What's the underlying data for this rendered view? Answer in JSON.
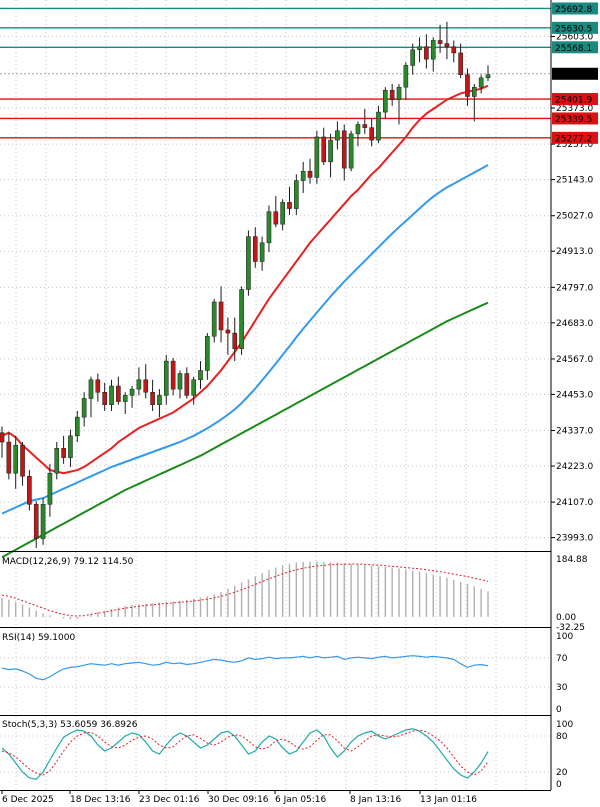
{
  "chart_data": {
    "type": "candlestick",
    "main": {
      "price_ticks": [
        "25603.0",
        "25373.0",
        "25257.0",
        "25143.0",
        "25027.0",
        "24913.0",
        "24797.0",
        "24683.0",
        "24567.0",
        "24453.0",
        "24337.0",
        "24223.0",
        "24107.0",
        "23993.0"
      ],
      "ylim": [
        23950,
        25720
      ],
      "candles": [
        [
          24330,
          24350,
          24250,
          24300
        ],
        [
          24300,
          24330,
          24180,
          24200
        ],
        [
          24200,
          24320,
          24150,
          24290
        ],
        [
          24290,
          24300,
          24160,
          24190
        ],
        [
          24190,
          24210,
          24080,
          24100
        ],
        [
          24100,
          24110,
          23960,
          23990
        ],
        [
          23990,
          24120,
          23970,
          24100
        ],
        [
          24100,
          24230,
          24060,
          24200
        ],
        [
          24200,
          24300,
          24180,
          24280
        ],
        [
          24280,
          24320,
          24230,
          24250
        ],
        [
          24250,
          24340,
          24220,
          24320
        ],
        [
          24320,
          24400,
          24300,
          24380
        ],
        [
          24380,
          24460,
          24350,
          24440
        ],
        [
          24440,
          24510,
          24380,
          24500
        ],
        [
          24500,
          24520,
          24430,
          24460
        ],
        [
          24460,
          24490,
          24400,
          24420
        ],
        [
          24420,
          24500,
          24400,
          24480
        ],
        [
          24480,
          24510,
          24420,
          24430
        ],
        [
          24430,
          24460,
          24390,
          24450
        ],
        [
          24450,
          24480,
          24410,
          24470
        ],
        [
          24470,
          24540,
          24450,
          24500
        ],
        [
          24500,
          24550,
          24440,
          24460
        ],
        [
          24460,
          24500,
          24400,
          24420
        ],
        [
          24420,
          24470,
          24380,
          24450
        ],
        [
          24450,
          24580,
          24420,
          24560
        ],
        [
          24560,
          24570,
          24450,
          24470
        ],
        [
          24470,
          24530,
          24440,
          24520
        ],
        [
          24520,
          24540,
          24440,
          24450
        ],
        [
          24450,
          24510,
          24420,
          24500
        ],
        [
          24500,
          24560,
          24470,
          24530
        ],
        [
          24530,
          24650,
          24500,
          24640
        ],
        [
          24640,
          24760,
          24620,
          24750
        ],
        [
          24750,
          24800,
          24620,
          24660
        ],
        [
          24660,
          24700,
          24580,
          24650
        ],
        [
          24650,
          24700,
          24560,
          24600
        ],
        [
          24600,
          24800,
          24580,
          24790
        ],
        [
          24790,
          24980,
          24770,
          24960
        ],
        [
          24960,
          24990,
          24860,
          24880
        ],
        [
          24880,
          24960,
          24850,
          24940
        ],
        [
          24940,
          25060,
          24910,
          25040
        ],
        [
          25040,
          25090,
          24990,
          25000
        ],
        [
          25000,
          25080,
          24980,
          25070
        ],
        [
          25070,
          25120,
          25030,
          25050
        ],
        [
          25050,
          25160,
          25030,
          25140
        ],
        [
          25140,
          25200,
          25100,
          25170
        ],
        [
          25170,
          25210,
          25130,
          25150
        ],
        [
          25150,
          25300,
          25130,
          25280
        ],
        [
          25280,
          25310,
          25190,
          25200
        ],
        [
          25200,
          25290,
          25150,
          25270
        ],
        [
          25270,
          25330,
          25240,
          25300
        ],
        [
          25300,
          25320,
          25140,
          25180
        ],
        [
          25180,
          25300,
          25170,
          25290
        ],
        [
          25290,
          25330,
          25250,
          25320
        ],
        [
          25320,
          25370,
          25290,
          25310
        ],
        [
          25310,
          25340,
          25250,
          25270
        ],
        [
          25270,
          25380,
          25260,
          25360
        ],
        [
          25360,
          25440,
          25340,
          25430
        ],
        [
          25430,
          25450,
          25380,
          25400
        ],
        [
          25400,
          25450,
          25320,
          25440
        ],
        [
          25440,
          25520,
          25400,
          25510
        ],
        [
          25510,
          25580,
          25480,
          25560
        ],
        [
          25560,
          25600,
          25520,
          25570
        ],
        [
          25570,
          25610,
          25500,
          25530
        ],
        [
          25530,
          25600,
          25490,
          25590
        ],
        [
          25590,
          25640,
          25550,
          25580
        ],
        [
          25580,
          25650,
          25530,
          25570
        ],
        [
          25570,
          25590,
          25520,
          25550
        ],
        [
          25550,
          25580,
          25470,
          25480
        ],
        [
          25480,
          25500,
          25380,
          25410
        ],
        [
          25410,
          25450,
          25330,
          25440
        ],
        [
          25440,
          25480,
          25420,
          25470
        ],
        [
          25470,
          25510,
          25460,
          25480
        ]
      ],
      "ma_red": [
        24320,
        24330,
        24315,
        24290,
        24270,
        24250,
        24230,
        24210,
        24205,
        24200,
        24205,
        24210,
        24220,
        24235,
        24250,
        24265,
        24280,
        24300,
        24315,
        24330,
        24345,
        24355,
        24365,
        24375,
        24385,
        24395,
        24410,
        24425,
        24440,
        24460,
        24480,
        24505,
        24530,
        24560,
        24590,
        24620,
        24655,
        24690,
        24725,
        24760,
        24790,
        24820,
        24850,
        24880,
        24910,
        24940,
        24965,
        24990,
        25015,
        25040,
        25065,
        25090,
        25110,
        25135,
        25160,
        25180,
        25205,
        25230,
        25255,
        25280,
        25310,
        25335,
        25355,
        25370,
        25385,
        25400,
        25410,
        25420,
        25425,
        25430,
        25435,
        25445
      ],
      "ma_blue": [
        24070,
        24080,
        24090,
        24100,
        24110,
        24115,
        24120,
        24130,
        24140,
        24150,
        24160,
        24170,
        24180,
        24190,
        24200,
        24210,
        24220,
        24228,
        24236,
        24244,
        24252,
        24260,
        24268,
        24276,
        24284,
        24292,
        24300,
        24310,
        24320,
        24332,
        24344,
        24358,
        24372,
        24388,
        24405,
        24425,
        24448,
        24472,
        24498,
        24525,
        24552,
        24580,
        24608,
        24636,
        24664,
        24690,
        24716,
        24742,
        24768,
        24792,
        24816,
        24838,
        24860,
        24882,
        24904,
        24926,
        24948,
        24970,
        24990,
        25010,
        25030,
        25050,
        25070,
        25088,
        25104,
        25118,
        25130,
        25142,
        25154,
        25166,
        25178,
        25190
      ],
      "ma_green": [
        23930,
        23942,
        23954,
        23966,
        23978,
        23990,
        24002,
        24014,
        24026,
        24038,
        24050,
        24062,
        24074,
        24086,
        24098,
        24110,
        24122,
        24134,
        24146,
        24156,
        24166,
        24176,
        24186,
        24196,
        24206,
        24216,
        24226,
        24236,
        24246,
        24256,
        24268,
        24280,
        24292,
        24304,
        24316,
        24328,
        24340,
        24352,
        24364,
        24376,
        24388,
        24400,
        24412,
        24424,
        24436,
        24448,
        24460,
        24472,
        24484,
        24496,
        24508,
        24520,
        24532,
        24544,
        24556,
        24568,
        24580,
        24592,
        24604,
        24616,
        24628,
        24640,
        24652,
        24664,
        24676,
        24688,
        24698,
        24708,
        24718,
        24728,
        24738,
        24748
      ],
      "horizontal_levels": [
        {
          "value": 25692.8,
          "label": "25692.8",
          "color": "#1a8a80"
        },
        {
          "value": 25630.5,
          "label": "25630.5",
          "color": "#1a8a80"
        },
        {
          "value": 25568.1,
          "label": "25568.1",
          "color": "#1a8a80"
        },
        {
          "value": 25401.9,
          "label": "25401.9",
          "color": "#e01010"
        },
        {
          "value": 25339.5,
          "label": "25339.5",
          "color": "#e01010"
        },
        {
          "value": 25277.2,
          "label": "25277.2",
          "color": "#e01010"
        }
      ],
      "current_price": {
        "value": 25483.0,
        "label": "25483.0"
      }
    },
    "macd": {
      "label": "MACD(12,26,9) 79.12 114.50",
      "ticks": [
        "184.88",
        "0.00",
        "-32.25"
      ],
      "ylim": [
        -32.25,
        195
      ],
      "histogram": [
        60,
        55,
        48,
        40,
        30,
        20,
        12,
        5,
        0,
        -5,
        -8,
        -6,
        0,
        8,
        15,
        20,
        25,
        30,
        35,
        38,
        40,
        42,
        44,
        46,
        48,
        50,
        52,
        55,
        58,
        62,
        66,
        72,
        80,
        90,
        100,
        110,
        120,
        130,
        140,
        150,
        158,
        165,
        170,
        174,
        176,
        177,
        177,
        176,
        175,
        174,
        172,
        170,
        168,
        166,
        164,
        162,
        160,
        158,
        155,
        152,
        148,
        145,
        140,
        135,
        130,
        125,
        118,
        112,
        105,
        98,
        90,
        82
      ],
      "signal": [
        70,
        66,
        60,
        52,
        44,
        36,
        28,
        20,
        14,
        8,
        4,
        3,
        4,
        8,
        12,
        16,
        20,
        24,
        28,
        31,
        34,
        37,
        39,
        41,
        43,
        45,
        47,
        49,
        51,
        54,
        57,
        61,
        66,
        72,
        79,
        87,
        95,
        104,
        113,
        122,
        130,
        138,
        145,
        151,
        156,
        160,
        163,
        165,
        167,
        168,
        169,
        169,
        169,
        168,
        167,
        166,
        164,
        162,
        160,
        158,
        156,
        154,
        151,
        148,
        145,
        141,
        137,
        133,
        129,
        124,
        119,
        114
      ]
    },
    "rsi": {
      "label": "RSI(14) 59.1000",
      "ticks": [
        "100",
        "70",
        "30",
        "0"
      ],
      "ylim": [
        0,
        100
      ],
      "values": [
        56,
        54,
        55,
        52,
        48,
        42,
        40,
        44,
        50,
        55,
        57,
        58,
        60,
        62,
        61,
        60,
        62,
        60,
        62,
        63,
        64,
        62,
        60,
        61,
        64,
        62,
        63,
        61,
        62,
        64,
        66,
        68,
        67,
        65,
        64,
        66,
        70,
        68,
        69,
        71,
        69,
        70,
        70,
        71,
        72,
        70,
        72,
        70,
        71,
        72,
        68,
        70,
        71,
        70,
        69,
        71,
        72,
        70,
        71,
        72,
        73,
        72,
        71,
        72,
        71,
        70,
        68,
        62,
        57,
        60,
        61,
        59
      ]
    },
    "stoch": {
      "label": "Stoch(5,3,3) 53.6059 36.8926",
      "ticks": [
        "100",
        "80",
        "20",
        "0"
      ],
      "ylim": [
        0,
        100
      ],
      "k": [
        60,
        50,
        35,
        20,
        10,
        8,
        20,
        40,
        60,
        78,
        85,
        90,
        88,
        80,
        65,
        55,
        60,
        70,
        80,
        85,
        82,
        70,
        55,
        50,
        65,
        78,
        85,
        80,
        70,
        60,
        65,
        75,
        85,
        88,
        80,
        65,
        50,
        55,
        70,
        80,
        75,
        60,
        50,
        55,
        70,
        85,
        90,
        80,
        60,
        45,
        55,
        70,
        80,
        85,
        88,
        80,
        75,
        80,
        85,
        90,
        92,
        88,
        80,
        70,
        55,
        40,
        25,
        15,
        10,
        20,
        35,
        54
      ],
      "d": [
        55,
        52,
        45,
        35,
        25,
        18,
        15,
        22,
        38,
        55,
        70,
        80,
        85,
        86,
        80,
        70,
        62,
        60,
        65,
        73,
        78,
        80,
        75,
        65,
        60,
        62,
        72,
        80,
        82,
        76,
        68,
        65,
        70,
        78,
        82,
        80,
        72,
        62,
        58,
        62,
        72,
        75,
        70,
        62,
        58,
        62,
        73,
        82,
        82,
        72,
        60,
        55,
        62,
        72,
        80,
        82,
        80,
        78,
        80,
        84,
        88,
        90,
        87,
        80,
        72,
        60,
        45,
        30,
        20,
        15,
        22,
        37
      ]
    },
    "x_axis": {
      "labels": [
        "6 Dec 2025",
        "18 Dec 13:16",
        "23 Dec 01:16",
        "30 Dec 09:16",
        "6 Jan 05:16",
        "8 Jan 13:16",
        "13 Jan 01:16"
      ]
    },
    "colors": {
      "bull": "#2a8a2a",
      "bear": "#c01818",
      "ma_red": "#e82020",
      "ma_blue": "#3399ee",
      "ma_green": "#1a8a1a",
      "macd_hist": "#b0b0b0",
      "macd_signal": "#e02020",
      "rsi": "#3399ee",
      "stoch_k": "#22aaaa",
      "stoch_d": "#e02020",
      "grid": "#c8c8c8"
    }
  }
}
